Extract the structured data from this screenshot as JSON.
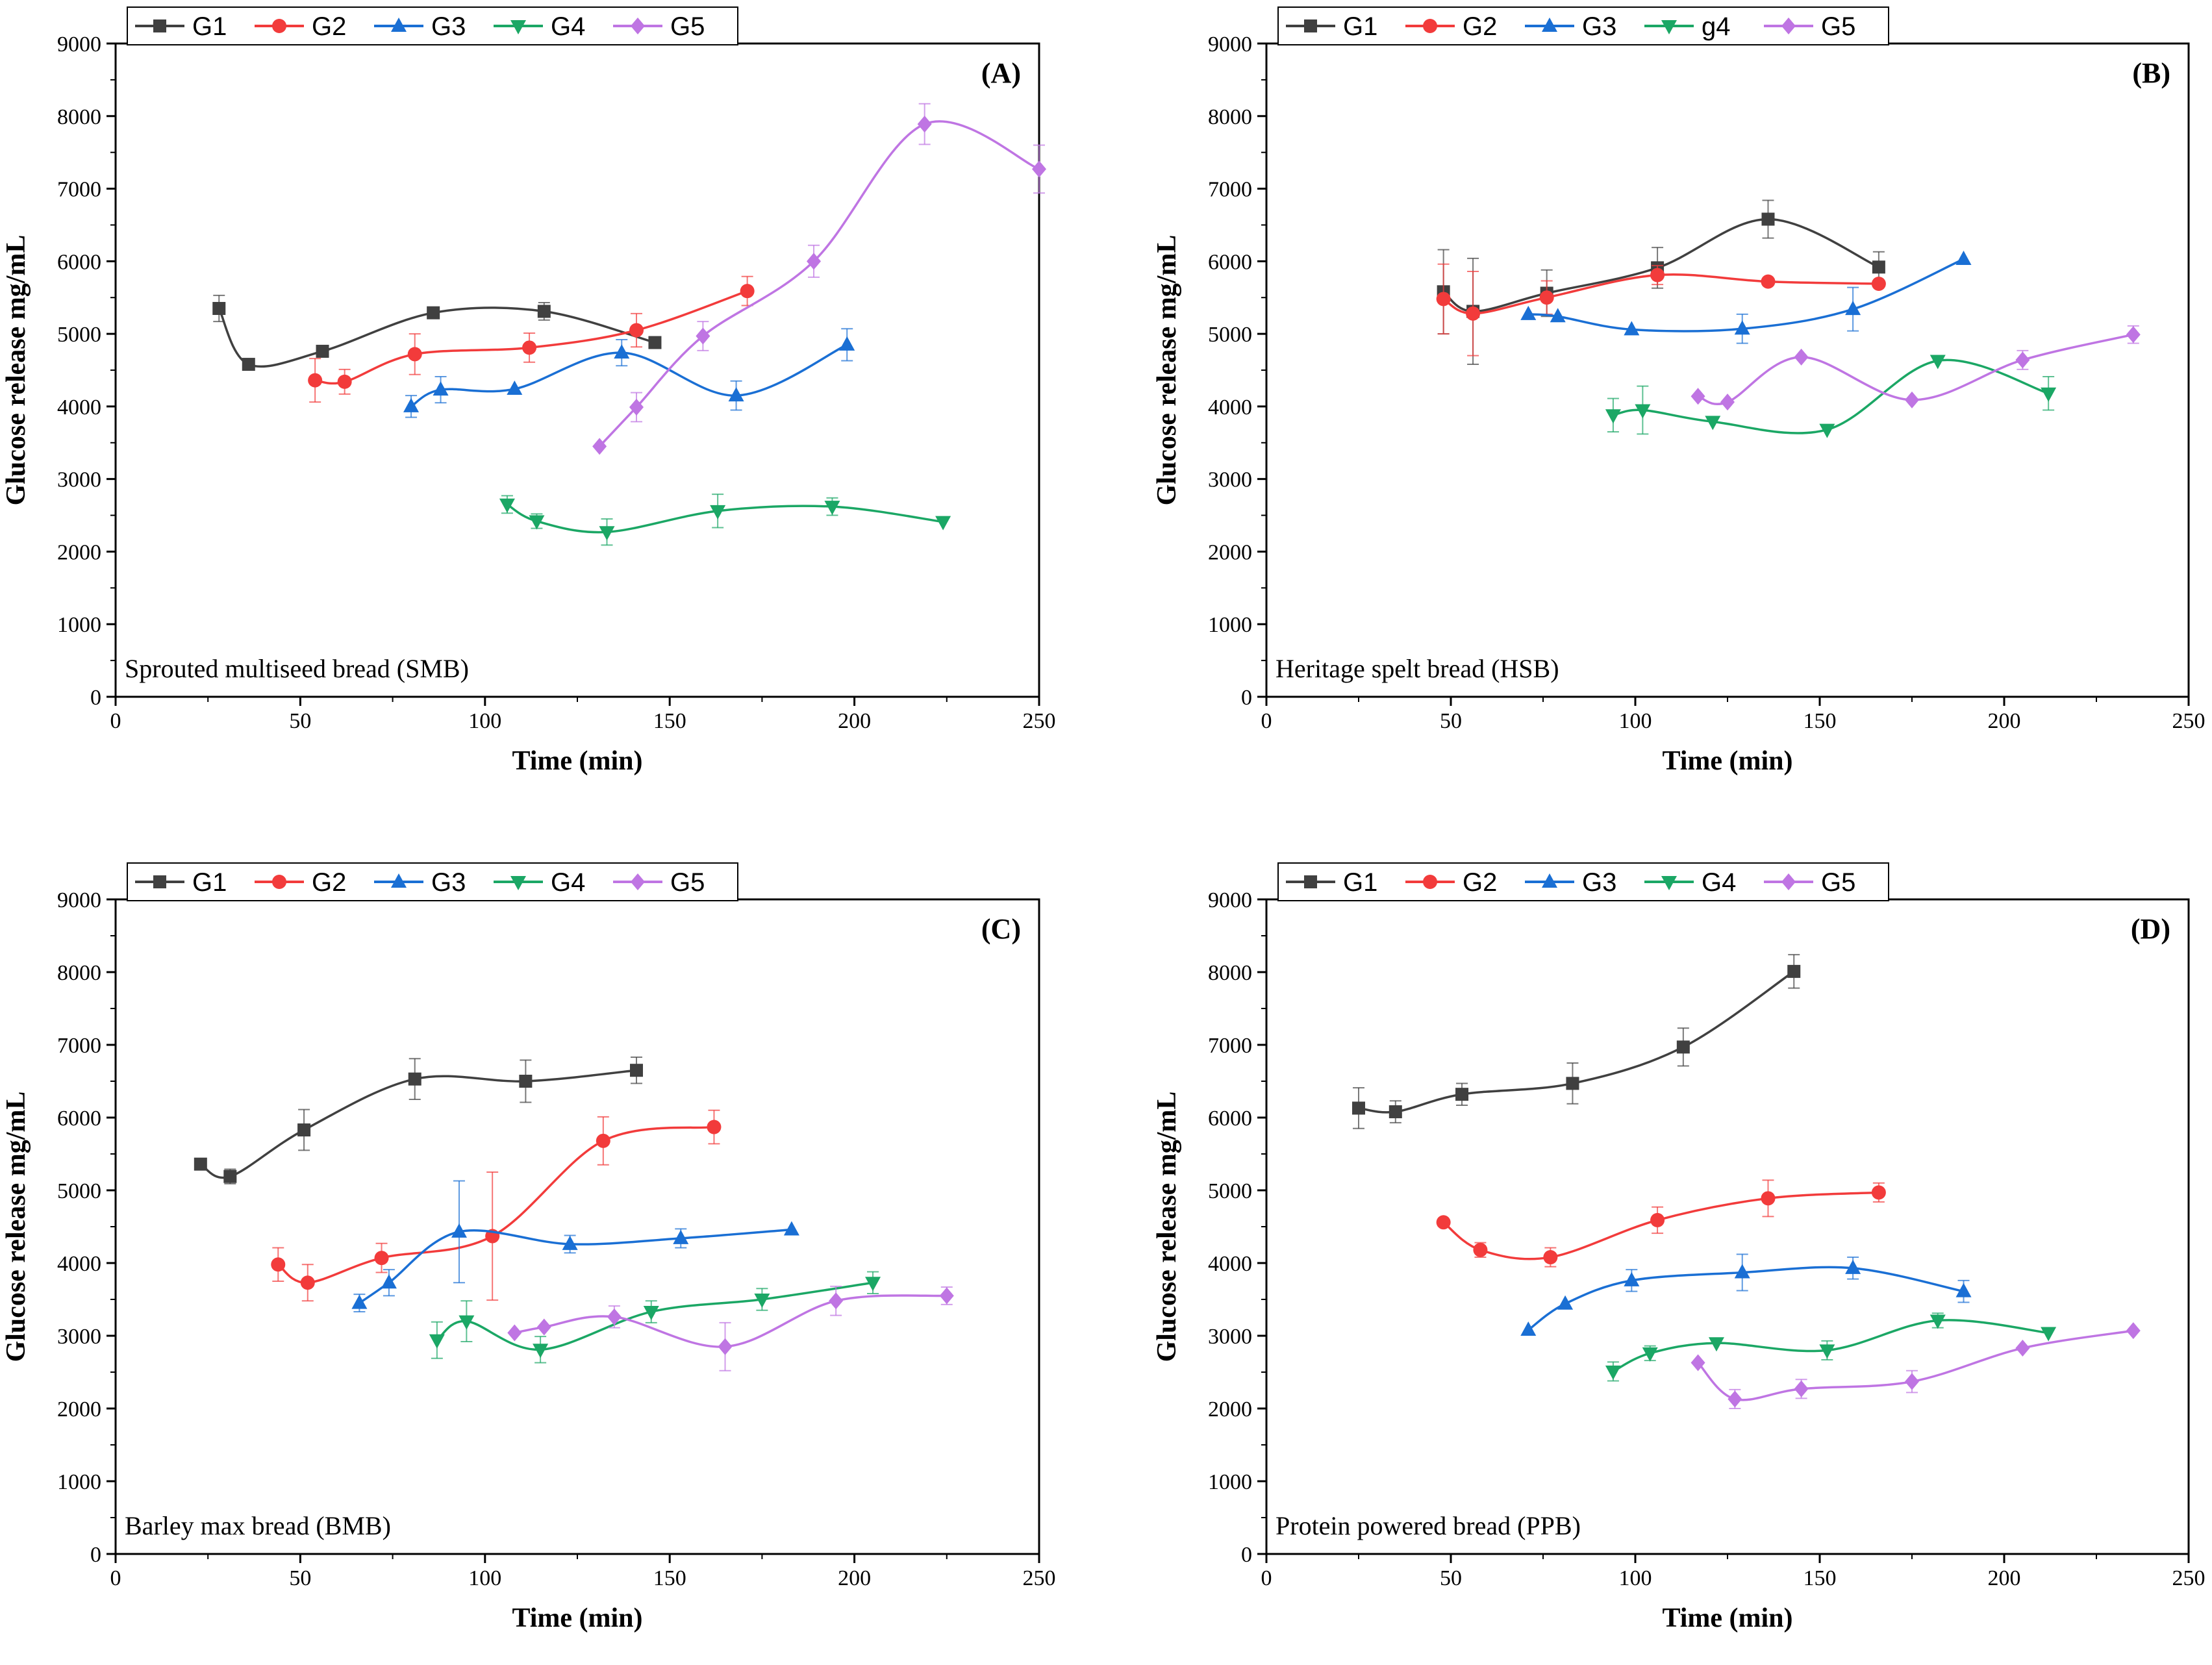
{
  "chart_data": [
    {
      "type": "line",
      "panel_label": "(A)",
      "annotation": "Sprouted multiseed bread (SMB)",
      "xlabel": "Time (min)",
      "ylabel": "Glucose release mg/mL",
      "xlim": [
        0,
        250
      ],
      "ylim": [
        0,
        9000
      ],
      "xticks": [
        0,
        50,
        100,
        150,
        200,
        250
      ],
      "yticks": [
        0,
        1000,
        2000,
        3000,
        4000,
        5000,
        6000,
        7000,
        8000,
        9000
      ],
      "legend_position": "top",
      "series": [
        {
          "name": "G1",
          "color": "#404040",
          "marker": "square",
          "x": [
            28,
            36,
            56,
            86,
            116,
            146
          ],
          "y": [
            5350,
            4580,
            4760,
            5290,
            5310,
            4880
          ],
          "err": [
            180,
            0,
            80,
            0,
            120,
            0
          ]
        },
        {
          "name": "G2",
          "color": "#f23b3b",
          "marker": "circle",
          "x": [
            54,
            62,
            81,
            112,
            141,
            171
          ],
          "y": [
            4360,
            4340,
            4720,
            4810,
            5050,
            5590
          ],
          "err": [
            300,
            170,
            280,
            200,
            230,
            200
          ]
        },
        {
          "name": "G3",
          "color": "#1a6fd4",
          "marker": "triangle-up",
          "x": [
            80,
            88,
            108,
            137,
            168,
            198
          ],
          "y": [
            4000,
            4230,
            4240,
            4740,
            4150,
            4850
          ],
          "err": [
            150,
            180,
            0,
            180,
            200,
            220
          ]
        },
        {
          "name": "G4",
          "color": "#1ba765",
          "marker": "triangle-down",
          "x": [
            106,
            114,
            133,
            163,
            194,
            224
          ],
          "y": [
            2650,
            2420,
            2270,
            2560,
            2620,
            2410
          ],
          "err": [
            120,
            100,
            180,
            230,
            120,
            0
          ]
        },
        {
          "name": "G5",
          "color": "#bf75e3",
          "marker": "diamond",
          "x": [
            131,
            141,
            159,
            189,
            219,
            250
          ],
          "y": [
            3450,
            3990,
            4970,
            6000,
            7890,
            7270
          ],
          "err": [
            0,
            200,
            200,
            220,
            280,
            330
          ]
        }
      ]
    },
    {
      "type": "line",
      "panel_label": "(B)",
      "annotation": "Heritage spelt bread (HSB)",
      "xlabel": "Time (min)",
      "ylabel": "Glucose release mg/mL",
      "xlim": [
        0,
        250
      ],
      "ylim": [
        0,
        9000
      ],
      "xticks": [
        0,
        50,
        100,
        150,
        200,
        250
      ],
      "yticks": [
        0,
        1000,
        2000,
        3000,
        4000,
        5000,
        6000,
        7000,
        8000,
        9000
      ],
      "legend_position": "top",
      "series": [
        {
          "name": "G1",
          "color": "#404040",
          "marker": "square",
          "x": [
            48,
            56,
            76,
            106,
            136,
            166
          ],
          "y": [
            5580,
            5310,
            5560,
            5910,
            6580,
            5920
          ],
          "err": [
            580,
            730,
            320,
            280,
            260,
            210
          ]
        },
        {
          "name": "G2",
          "color": "#f23b3b",
          "marker": "circle",
          "x": [
            48,
            56,
            76,
            106,
            136,
            166
          ],
          "y": [
            5480,
            5280,
            5500,
            5810,
            5720,
            5690
          ],
          "err": [
            480,
            580,
            230,
            130,
            0,
            0
          ]
        },
        {
          "name": "G3",
          "color": "#1a6fd4",
          "marker": "triangle-up",
          "x": [
            71,
            79,
            99,
            129,
            159,
            189
          ],
          "y": [
            5270,
            5240,
            5060,
            5070,
            5340,
            6030
          ],
          "err": [
            0,
            0,
            0,
            200,
            300,
            0
          ]
        },
        {
          "name": "g4",
          "color": "#1ba765",
          "marker": "triangle-down",
          "x": [
            94,
            102,
            121,
            152,
            182,
            212
          ],
          "y": [
            3880,
            3950,
            3790,
            3680,
            4630,
            4180
          ],
          "err": [
            230,
            330,
            0,
            0,
            0,
            230
          ]
        },
        {
          "name": "G5",
          "color": "#bf75e3",
          "marker": "diamond",
          "x": [
            117,
            125,
            145,
            175,
            205,
            235
          ],
          "y": [
            4140,
            4060,
            4680,
            4090,
            4640,
            4990
          ],
          "err": [
            0,
            0,
            0,
            0,
            130,
            120
          ]
        }
      ]
    },
    {
      "type": "line",
      "panel_label": "(C)",
      "annotation": "Barley max bread (BMB)",
      "xlabel": "Time (min)",
      "ylabel": "Glucose release mg/mL",
      "xlim": [
        0,
        250
      ],
      "ylim": [
        0,
        9000
      ],
      "xticks": [
        0,
        50,
        100,
        150,
        200,
        250
      ],
      "yticks": [
        0,
        1000,
        2000,
        3000,
        4000,
        5000,
        6000,
        7000,
        8000,
        9000
      ],
      "legend_position": "top",
      "series": [
        {
          "name": "G1",
          "color": "#404040",
          "marker": "square",
          "x": [
            23,
            31,
            51,
            81,
            111,
            141
          ],
          "y": [
            5360,
            5190,
            5830,
            6530,
            6500,
            6650
          ],
          "err": [
            0,
            100,
            280,
            280,
            290,
            180
          ]
        },
        {
          "name": "G2",
          "color": "#f23b3b",
          "marker": "circle",
          "x": [
            44,
            52,
            72,
            102,
            132,
            162
          ],
          "y": [
            3980,
            3730,
            4070,
            4370,
            5680,
            5870
          ],
          "err": [
            230,
            250,
            200,
            880,
            330,
            230
          ]
        },
        {
          "name": "G3",
          "color": "#1a6fd4",
          "marker": "triangle-up",
          "x": [
            66,
            74,
            93,
            123,
            153,
            183
          ],
          "y": [
            3450,
            3730,
            4430,
            4260,
            4340,
            4460
          ],
          "err": [
            120,
            180,
            700,
            120,
            130,
            0
          ]
        },
        {
          "name": "G4",
          "color": "#1ba765",
          "marker": "triangle-down",
          "x": [
            87,
            95,
            115,
            145,
            175,
            205
          ],
          "y": [
            2940,
            3200,
            2810,
            3330,
            3500,
            3730
          ],
          "err": [
            250,
            280,
            180,
            150,
            150,
            150
          ]
        },
        {
          "name": "G5",
          "color": "#bf75e3",
          "marker": "diamond",
          "x": [
            108,
            116,
            135,
            165,
            195,
            225
          ],
          "y": [
            3040,
            3120,
            3260,
            2850,
            3480,
            3550
          ],
          "err": [
            0,
            0,
            150,
            330,
            200,
            120
          ]
        }
      ]
    },
    {
      "type": "line",
      "panel_label": "(D)",
      "annotation": "Protein powered bread (PPB)",
      "xlabel": "Time (min)",
      "ylabel": "Glucose release mg/mL",
      "xlim": [
        0,
        250
      ],
      "ylim": [
        0,
        9000
      ],
      "xticks": [
        0,
        50,
        100,
        150,
        200,
        250
      ],
      "yticks": [
        0,
        1000,
        2000,
        3000,
        4000,
        5000,
        6000,
        7000,
        8000,
        9000
      ],
      "legend_position": "top",
      "series": [
        {
          "name": "G1",
          "color": "#404040",
          "marker": "square",
          "x": [
            25,
            35,
            53,
            83,
            113,
            143
          ],
          "y": [
            6130,
            6080,
            6320,
            6470,
            6970,
            8010
          ],
          "err": [
            280,
            150,
            150,
            280,
            260,
            230
          ]
        },
        {
          "name": "G2",
          "color": "#f23b3b",
          "marker": "circle",
          "x": [
            48,
            58,
            77,
            106,
            136,
            166
          ],
          "y": [
            4560,
            4180,
            4080,
            4590,
            4890,
            4970
          ],
          "err": [
            0,
            100,
            130,
            180,
            250,
            130
          ]
        },
        {
          "name": "G3",
          "color": "#1a6fd4",
          "marker": "triangle-up",
          "x": [
            71,
            81,
            99,
            129,
            159,
            189
          ],
          "y": [
            3080,
            3440,
            3760,
            3870,
            3930,
            3610
          ],
          "err": [
            0,
            0,
            150,
            250,
            150,
            150
          ]
        },
        {
          "name": "G4",
          "color": "#1ba765",
          "marker": "triangle-down",
          "x": [
            94,
            104,
            122,
            152,
            182,
            212
          ],
          "y": [
            2510,
            2760,
            2900,
            2800,
            3210,
            3040
          ],
          "err": [
            130,
            100,
            0,
            130,
            100,
            0
          ]
        },
        {
          "name": "G5",
          "color": "#bf75e3",
          "marker": "diamond",
          "x": [
            117,
            127,
            145,
            175,
            205,
            235
          ],
          "y": [
            2630,
            2130,
            2270,
            2370,
            2830,
            3070
          ],
          "err": [
            0,
            130,
            130,
            150,
            0,
            0
          ]
        }
      ]
    }
  ]
}
